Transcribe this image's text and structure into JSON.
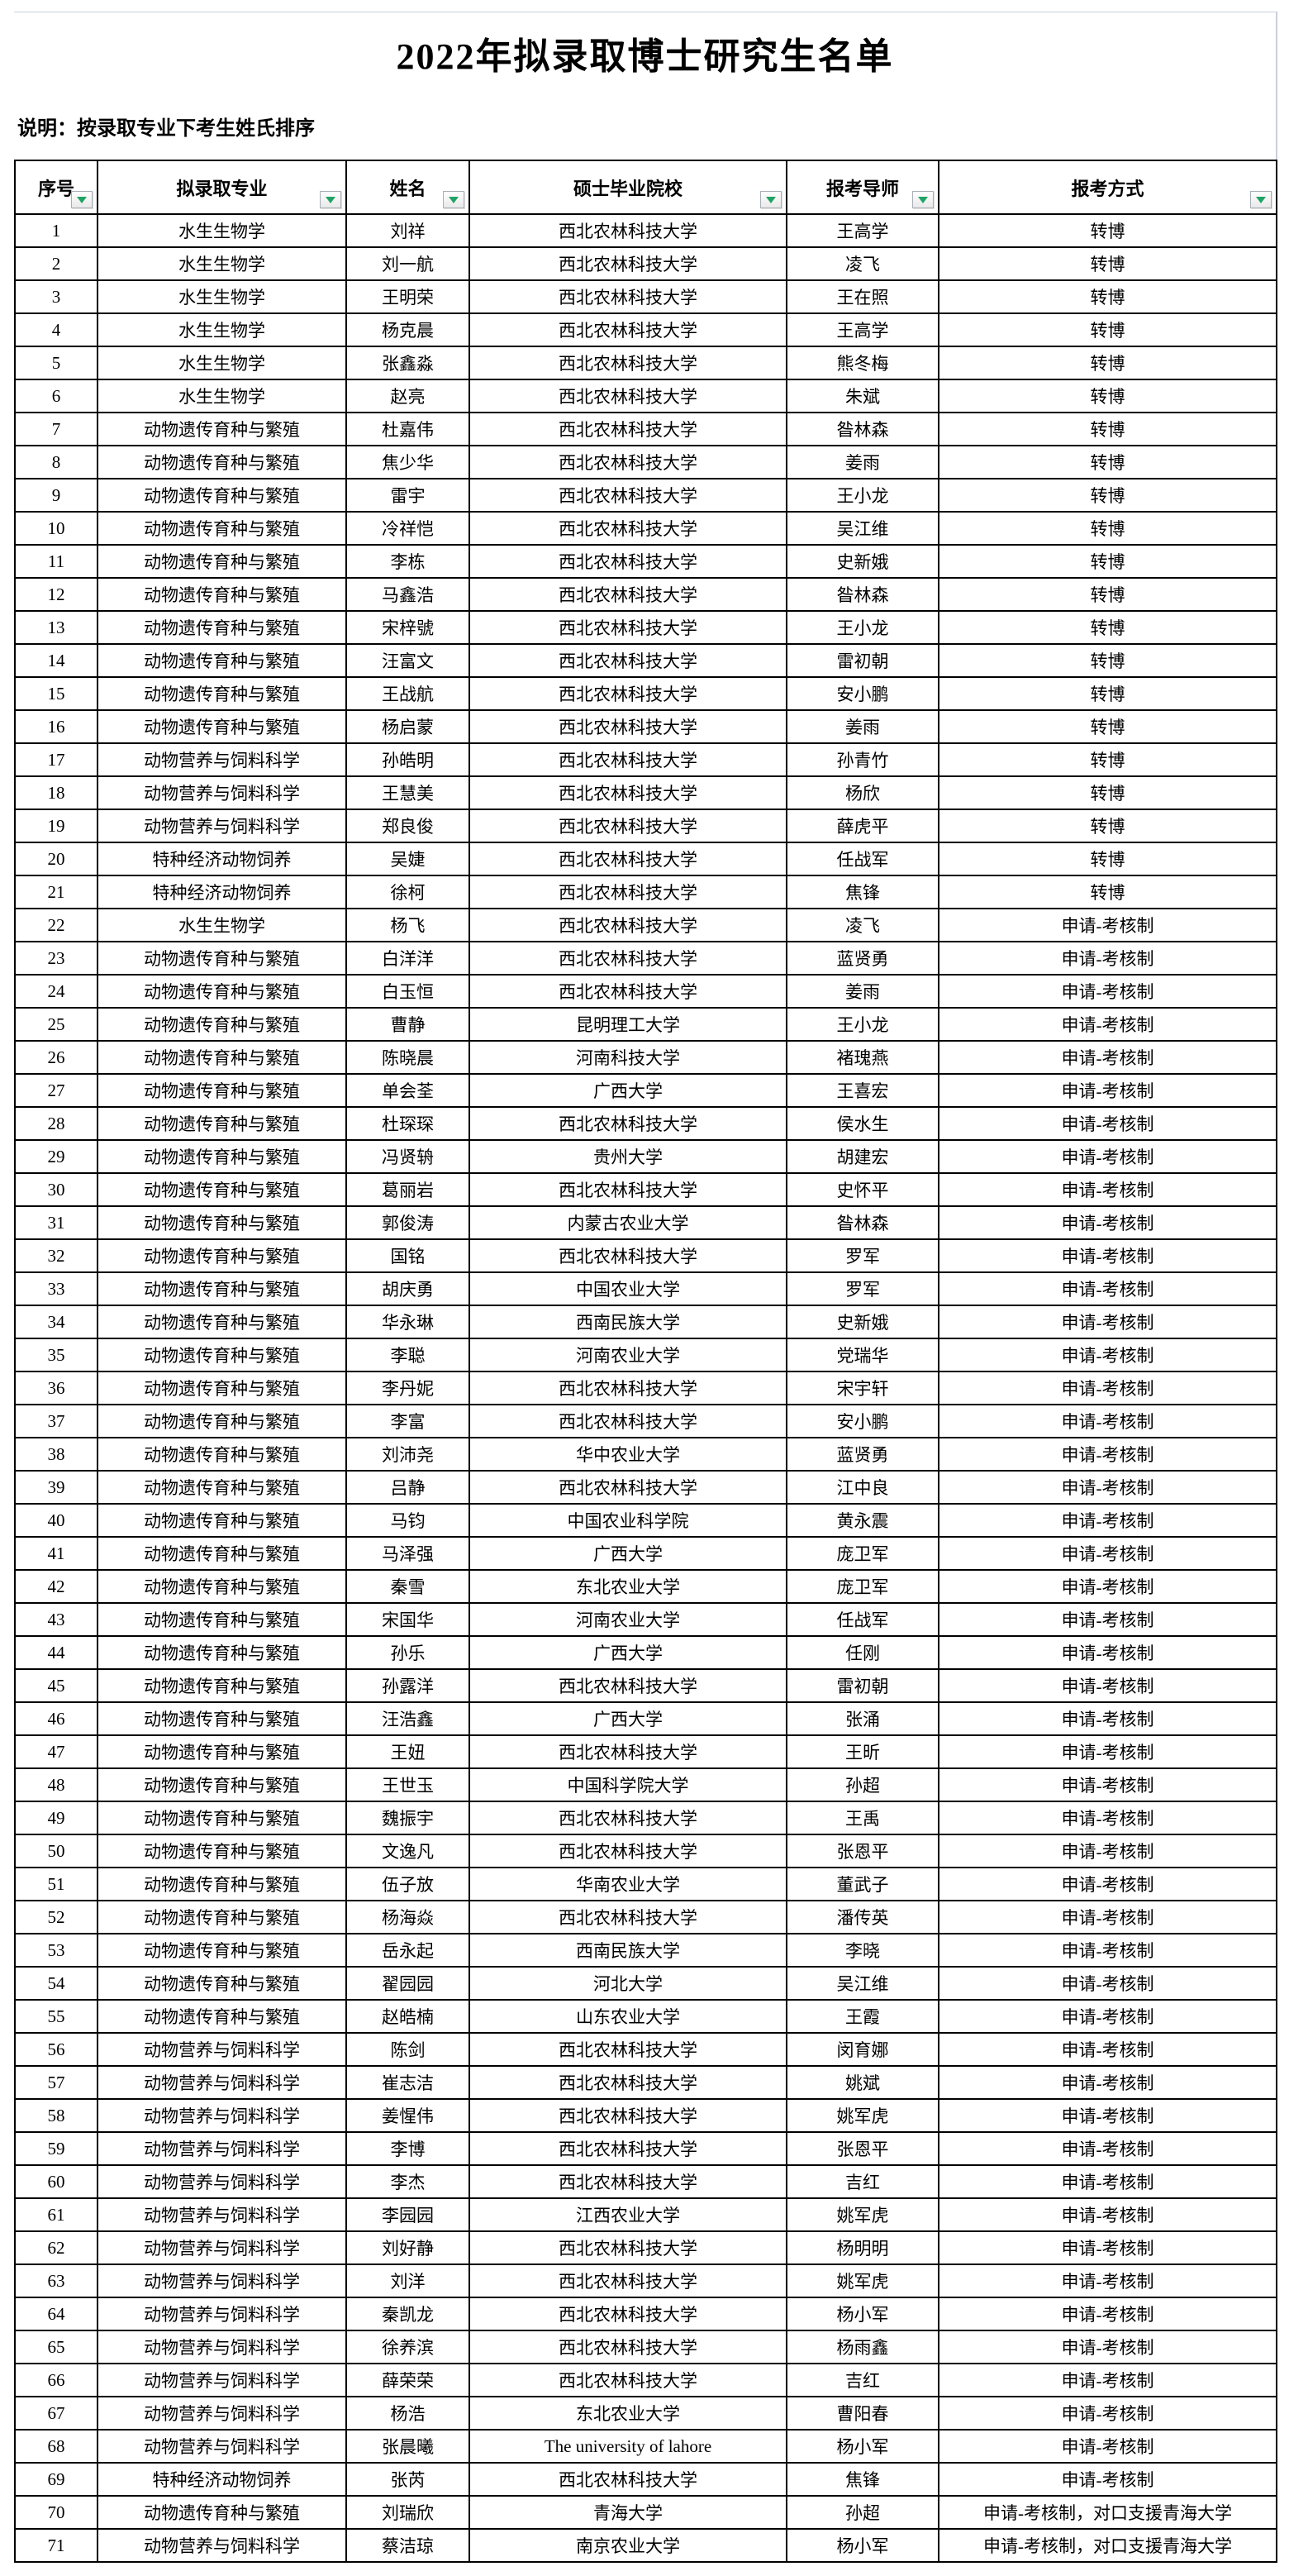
{
  "title": "2022年拟录取博士研究生名单",
  "note": "说明：按录取专业下考生姓氏排序",
  "colors": {
    "filter_triangle_green": "#1FA463",
    "table_border": "#000000",
    "sheet_gridline": "#c9cfdb"
  },
  "icons": {
    "filter_dropdown": "triangle-down"
  },
  "table": {
    "columns": [
      "序号",
      "拟录取专业",
      "姓名",
      "硕士毕业院校",
      "报考导师",
      "报考方式"
    ],
    "rows": [
      [
        "1",
        "水生生物学",
        "刘祥",
        "西北农林科技大学",
        "王高学",
        "转博"
      ],
      [
        "2",
        "水生生物学",
        "刘一航",
        "西北农林科技大学",
        "凌飞",
        "转博"
      ],
      [
        "3",
        "水生生物学",
        "王明荣",
        "西北农林科技大学",
        "王在照",
        "转博"
      ],
      [
        "4",
        "水生生物学",
        "杨克晨",
        "西北农林科技大学",
        "王高学",
        "转博"
      ],
      [
        "5",
        "水生生物学",
        "张鑫淼",
        "西北农林科技大学",
        "熊冬梅",
        "转博"
      ],
      [
        "6",
        "水生生物学",
        "赵亮",
        "西北农林科技大学",
        "朱斌",
        "转博"
      ],
      [
        "7",
        "动物遗传育种与繁殖",
        "杜嘉伟",
        "西北农林科技大学",
        "昝林森",
        "转博"
      ],
      [
        "8",
        "动物遗传育种与繁殖",
        "焦少华",
        "西北农林科技大学",
        "姜雨",
        "转博"
      ],
      [
        "9",
        "动物遗传育种与繁殖",
        "雷宇",
        "西北农林科技大学",
        "王小龙",
        "转博"
      ],
      [
        "10",
        "动物遗传育种与繁殖",
        "冷祥恺",
        "西北农林科技大学",
        "吴江维",
        "转博"
      ],
      [
        "11",
        "动物遗传育种与繁殖",
        "李栋",
        "西北农林科技大学",
        "史新娥",
        "转博"
      ],
      [
        "12",
        "动物遗传育种与繁殖",
        "马鑫浩",
        "西北农林科技大学",
        "昝林森",
        "转博"
      ],
      [
        "13",
        "动物遗传育种与繁殖",
        "宋梓號",
        "西北农林科技大学",
        "王小龙",
        "转博"
      ],
      [
        "14",
        "动物遗传育种与繁殖",
        "汪富文",
        "西北农林科技大学",
        "雷初朝",
        "转博"
      ],
      [
        "15",
        "动物遗传育种与繁殖",
        "王战航",
        "西北农林科技大学",
        "安小鹏",
        "转博"
      ],
      [
        "16",
        "动物遗传育种与繁殖",
        "杨启蒙",
        "西北农林科技大学",
        "姜雨",
        "转博"
      ],
      [
        "17",
        "动物营养与饲料科学",
        "孙皓明",
        "西北农林科技大学",
        "孙青竹",
        "转博"
      ],
      [
        "18",
        "动物营养与饲料科学",
        "王慧美",
        "西北农林科技大学",
        "杨欣",
        "转博"
      ],
      [
        "19",
        "动物营养与饲料科学",
        "郑良俊",
        "西北农林科技大学",
        "薛虎平",
        "转博"
      ],
      [
        "20",
        "特种经济动物饲养",
        "吴婕",
        "西北农林科技大学",
        "任战军",
        "转博"
      ],
      [
        "21",
        "特种经济动物饲养",
        "徐柯",
        "西北农林科技大学",
        "焦锋",
        "转博"
      ],
      [
        "22",
        "水生生物学",
        "杨飞",
        "西北农林科技大学",
        "凌飞",
        "申请-考核制"
      ],
      [
        "23",
        "动物遗传育种与繁殖",
        "白洋洋",
        "西北农林科技大学",
        "蓝贤勇",
        "申请-考核制"
      ],
      [
        "24",
        "动物遗传育种与繁殖",
        "白玉恒",
        "西北农林科技大学",
        "姜雨",
        "申请-考核制"
      ],
      [
        "25",
        "动物遗传育种与繁殖",
        "曹静",
        "昆明理工大学",
        "王小龙",
        "申请-考核制"
      ],
      [
        "26",
        "动物遗传育种与繁殖",
        "陈晓晨",
        "河南科技大学",
        "褚瑰燕",
        "申请-考核制"
      ],
      [
        "27",
        "动物遗传育种与繁殖",
        "单会荃",
        "广西大学",
        "王喜宏",
        "申请-考核制"
      ],
      [
        "28",
        "动物遗传育种与繁殖",
        "杜琛琛",
        "西北农林科技大学",
        "侯水生",
        "申请-考核制"
      ],
      [
        "29",
        "动物遗传育种与繁殖",
        "冯贤辀",
        "贵州大学",
        "胡建宏",
        "申请-考核制"
      ],
      [
        "30",
        "动物遗传育种与繁殖",
        "葛丽岩",
        "西北农林科技大学",
        "史怀平",
        "申请-考核制"
      ],
      [
        "31",
        "动物遗传育种与繁殖",
        "郭俊涛",
        "内蒙古农业大学",
        "昝林森",
        "申请-考核制"
      ],
      [
        "32",
        "动物遗传育种与繁殖",
        "国铭",
        "西北农林科技大学",
        "罗军",
        "申请-考核制"
      ],
      [
        "33",
        "动物遗传育种与繁殖",
        "胡庆勇",
        "中国农业大学",
        "罗军",
        "申请-考核制"
      ],
      [
        "34",
        "动物遗传育种与繁殖",
        "华永琳",
        "西南民族大学",
        "史新娥",
        "申请-考核制"
      ],
      [
        "35",
        "动物遗传育种与繁殖",
        "李聪",
        "河南农业大学",
        "党瑞华",
        "申请-考核制"
      ],
      [
        "36",
        "动物遗传育种与繁殖",
        "李丹妮",
        "西北农林科技大学",
        "宋宇轩",
        "申请-考核制"
      ],
      [
        "37",
        "动物遗传育种与繁殖",
        "李富",
        "西北农林科技大学",
        "安小鹏",
        "申请-考核制"
      ],
      [
        "38",
        "动物遗传育种与繁殖",
        "刘沛尧",
        "华中农业大学",
        "蓝贤勇",
        "申请-考核制"
      ],
      [
        "39",
        "动物遗传育种与繁殖",
        "吕静",
        "西北农林科技大学",
        "江中良",
        "申请-考核制"
      ],
      [
        "40",
        "动物遗传育种与繁殖",
        "马钧",
        "中国农业科学院",
        "黄永震",
        "申请-考核制"
      ],
      [
        "41",
        "动物遗传育种与繁殖",
        "马泽强",
        "广西大学",
        "庞卫军",
        "申请-考核制"
      ],
      [
        "42",
        "动物遗传育种与繁殖",
        "秦雪",
        "东北农业大学",
        "庞卫军",
        "申请-考核制"
      ],
      [
        "43",
        "动物遗传育种与繁殖",
        "宋国华",
        "河南农业大学",
        "任战军",
        "申请-考核制"
      ],
      [
        "44",
        "动物遗传育种与繁殖",
        "孙乐",
        "广西大学",
        "任刚",
        "申请-考核制"
      ],
      [
        "45",
        "动物遗传育种与繁殖",
        "孙露洋",
        "西北农林科技大学",
        "雷初朝",
        "申请-考核制"
      ],
      [
        "46",
        "动物遗传育种与繁殖",
        "汪浩鑫",
        "广西大学",
        "张涌",
        "申请-考核制"
      ],
      [
        "47",
        "动物遗传育种与繁殖",
        "王妞",
        "西北农林科技大学",
        "王昕",
        "申请-考核制"
      ],
      [
        "48",
        "动物遗传育种与繁殖",
        "王世玉",
        "中国科学院大学",
        "孙超",
        "申请-考核制"
      ],
      [
        "49",
        "动物遗传育种与繁殖",
        "魏振宇",
        "西北农林科技大学",
        "王禹",
        "申请-考核制"
      ],
      [
        "50",
        "动物遗传育种与繁殖",
        "文逸凡",
        "西北农林科技大学",
        "张恩平",
        "申请-考核制"
      ],
      [
        "51",
        "动物遗传育种与繁殖",
        "伍子放",
        "华南农业大学",
        "董武子",
        "申请-考核制"
      ],
      [
        "52",
        "动物遗传育种与繁殖",
        "杨海焱",
        "西北农林科技大学",
        "潘传英",
        "申请-考核制"
      ],
      [
        "53",
        "动物遗传育种与繁殖",
        "岳永起",
        "西南民族大学",
        "李晓",
        "申请-考核制"
      ],
      [
        "54",
        "动物遗传育种与繁殖",
        "翟园园",
        "河北大学",
        "吴江维",
        "申请-考核制"
      ],
      [
        "55",
        "动物遗传育种与繁殖",
        "赵皓楠",
        "山东农业大学",
        "王霞",
        "申请-考核制"
      ],
      [
        "56",
        "动物营养与饲料科学",
        "陈剑",
        "西北农林科技大学",
        "闵育娜",
        "申请-考核制"
      ],
      [
        "57",
        "动物营养与饲料科学",
        "崔志洁",
        "西北农林科技大学",
        "姚斌",
        "申请-考核制"
      ],
      [
        "58",
        "动物营养与饲料科学",
        "姜惺伟",
        "西北农林科技大学",
        "姚军虎",
        "申请-考核制"
      ],
      [
        "59",
        "动物营养与饲料科学",
        "李博",
        "西北农林科技大学",
        "张恩平",
        "申请-考核制"
      ],
      [
        "60",
        "动物营养与饲料科学",
        "李杰",
        "西北农林科技大学",
        "吉红",
        "申请-考核制"
      ],
      [
        "61",
        "动物营养与饲料科学",
        "李园园",
        "江西农业大学",
        "姚军虎",
        "申请-考核制"
      ],
      [
        "62",
        "动物营养与饲料科学",
        "刘好静",
        "西北农林科技大学",
        "杨明明",
        "申请-考核制"
      ],
      [
        "63",
        "动物营养与饲料科学",
        "刘洋",
        "西北农林科技大学",
        "姚军虎",
        "申请-考核制"
      ],
      [
        "64",
        "动物营养与饲料科学",
        "秦凯龙",
        "西北农林科技大学",
        "杨小军",
        "申请-考核制"
      ],
      [
        "65",
        "动物营养与饲料科学",
        "徐养滨",
        "西北农林科技大学",
        "杨雨鑫",
        "申请-考核制"
      ],
      [
        "66",
        "动物营养与饲料科学",
        "薛荣荣",
        "西北农林科技大学",
        "吉红",
        "申请-考核制"
      ],
      [
        "67",
        "动物营养与饲料科学",
        "杨浩",
        "东北农业大学",
        "曹阳春",
        "申请-考核制"
      ],
      [
        "68",
        "动物营养与饲料科学",
        "张晨曦",
        "The university of lahore",
        "杨小军",
        "申请-考核制"
      ],
      [
        "69",
        "特种经济动物饲养",
        "张芮",
        "西北农林科技大学",
        "焦锋",
        "申请-考核制"
      ],
      [
        "70",
        "动物遗传育种与繁殖",
        "刘瑞欣",
        "青海大学",
        "孙超",
        "申请-考核制，对口支援青海大学"
      ],
      [
        "71",
        "动物营养与饲料科学",
        "蔡洁琼",
        "南京农业大学",
        "杨小军",
        "申请-考核制，对口支援青海大学"
      ]
    ]
  }
}
